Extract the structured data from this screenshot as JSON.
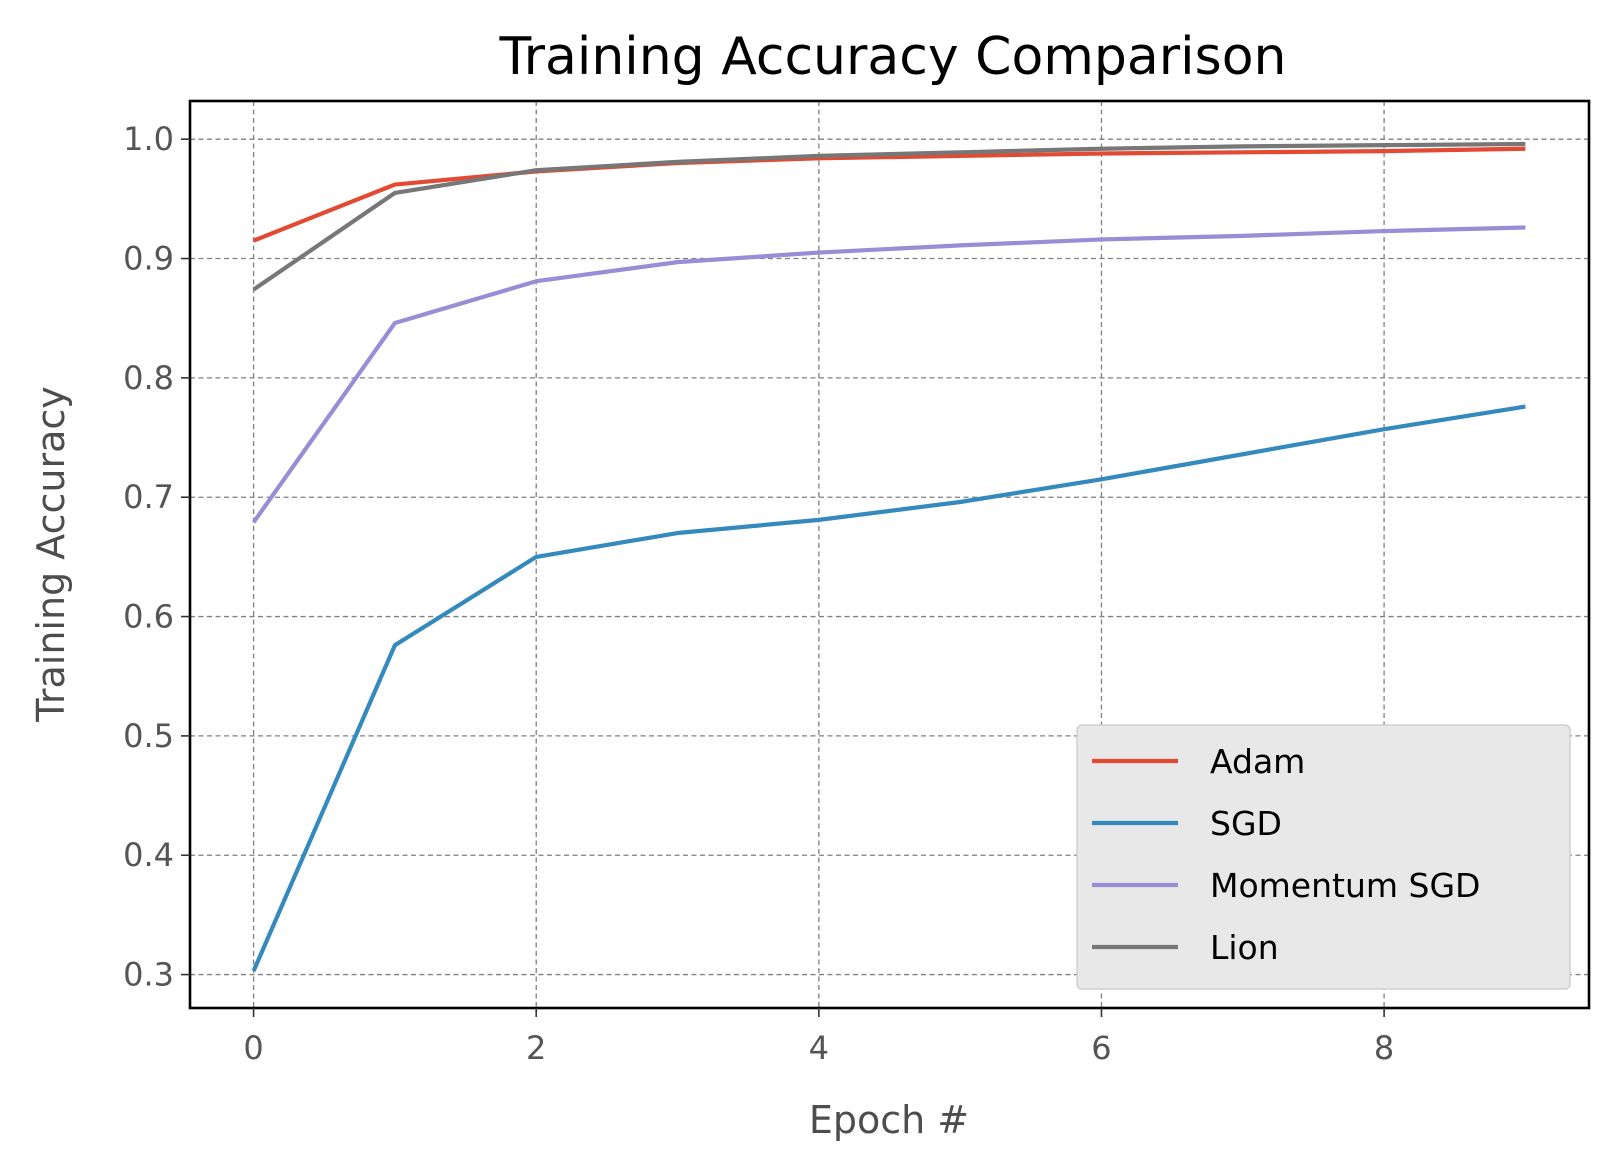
{
  "chart_data": {
    "type": "line",
    "title": "Training Accuracy Comparison",
    "xlabel": "Epoch #",
    "ylabel": "Training Accuracy",
    "x": [
      0,
      1,
      2,
      3,
      4,
      5,
      6,
      7,
      8,
      9
    ],
    "xlim": [
      -0.45,
      9.45
    ],
    "ylim": [
      0.272,
      1.032
    ],
    "xticks": [
      0,
      2,
      4,
      6,
      8
    ],
    "xtick_labels": [
      "0",
      "2",
      "4",
      "6",
      "8"
    ],
    "yticks": [
      0.3,
      0.4,
      0.5,
      0.6,
      0.7,
      0.8,
      0.9,
      1.0
    ],
    "ytick_labels": [
      "0.3",
      "0.4",
      "0.5",
      "0.6",
      "0.7",
      "0.8",
      "0.9",
      "1.0"
    ],
    "grid": true,
    "legend_position": "lower-right",
    "background_color": "#ffffff",
    "legend_background": "#e8e8e8",
    "series": [
      {
        "name": "Adam",
        "color": "#e24a33",
        "values": [
          0.915,
          0.962,
          0.973,
          0.98,
          0.984,
          0.986,
          0.988,
          0.989,
          0.99,
          0.992
        ]
      },
      {
        "name": "SGD",
        "color": "#348abd",
        "values": [
          0.303,
          0.576,
          0.65,
          0.67,
          0.681,
          0.696,
          0.715,
          0.736,
          0.757,
          0.776
        ]
      },
      {
        "name": "Momentum SGD",
        "color": "#988ed5",
        "values": [
          0.679,
          0.846,
          0.881,
          0.897,
          0.905,
          0.911,
          0.916,
          0.919,
          0.923,
          0.926
        ]
      },
      {
        "name": "Lion",
        "color": "#777777",
        "values": [
          0.874,
          0.955,
          0.974,
          0.981,
          0.986,
          0.989,
          0.992,
          0.994,
          0.995,
          0.996
        ]
      }
    ]
  }
}
